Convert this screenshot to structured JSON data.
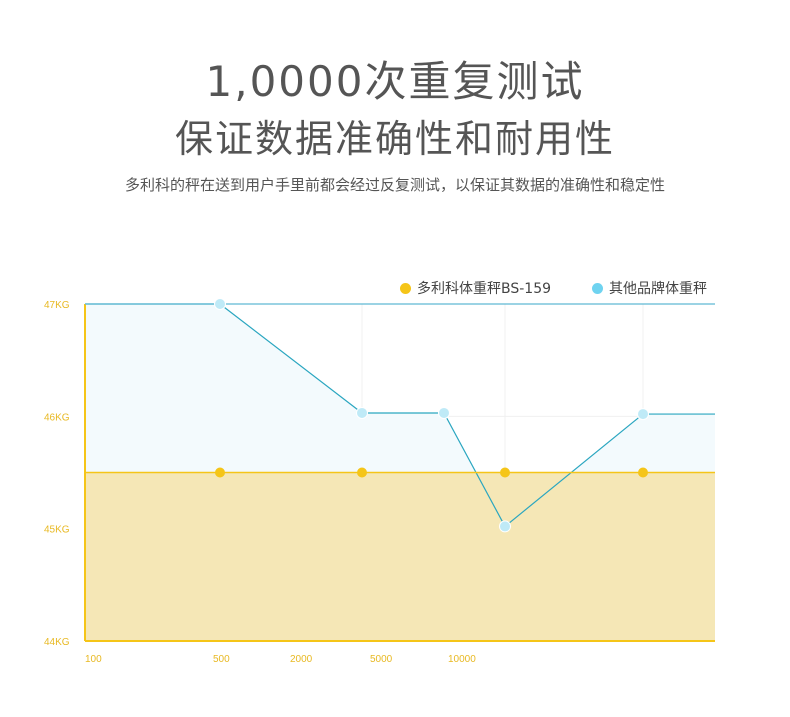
{
  "header": {
    "title_line1": "1,0000次重复测试",
    "title_line2": "保证数据准确性和耐用性",
    "subtitle": "多利科的秤在送到用户手里前都会经过反复测试，以保证其数据的准确性和稳定性"
  },
  "colors": {
    "brand_series": "#f5c518",
    "brand_fill": "#f5e7b6",
    "other_series_point": "#bfeaf7",
    "other_series_line": "#2aa6c0",
    "other_fill": "#f3fafd",
    "axis": "#f5c518",
    "tick_text": "#e8b923"
  },
  "chart_data": {
    "type": "line",
    "categories": [
      "100",
      "500",
      "2000",
      "5000",
      "10000",
      "",
      "",
      ""
    ],
    "y_tick_labels": [
      "47KG",
      "46KG",
      "45KG",
      "44KG"
    ],
    "ylim": [
      44,
      47
    ],
    "grid": true,
    "legend_position": "top-right",
    "series": [
      {
        "name": "多利科体重秤BS-159",
        "points": [
          {
            "x": "500",
            "y": 45.5
          },
          {
            "x": "5000",
            "y": 45.5
          },
          {
            "x": "",
            "y": 45.5
          },
          {
            "x": "",
            "y": 45.5
          }
        ]
      },
      {
        "name": "其他品牌体重秤",
        "points": [
          {
            "x": "500",
            "y": 47.0
          },
          {
            "x": "5000",
            "y": 46.03
          },
          {
            "x": "10000",
            "y": 46.03
          },
          {
            "x": "",
            "y": 45.02
          },
          {
            "x": "",
            "y": 46.02
          }
        ]
      }
    ]
  }
}
